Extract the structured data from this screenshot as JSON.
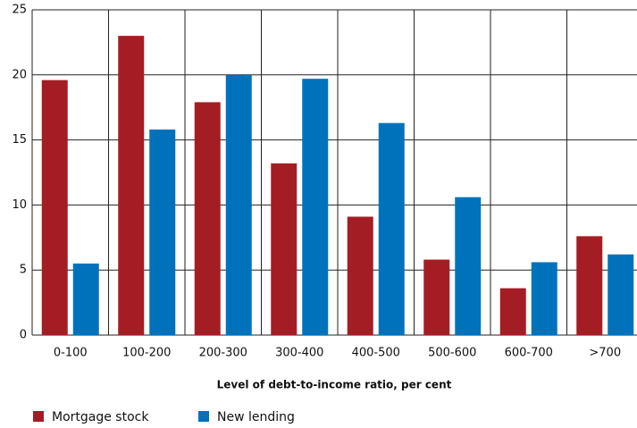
{
  "chart_data": {
    "type": "bar",
    "x_label": "Level of debt-to-income ratio, per cent",
    "categories": [
      "0-100",
      "100-200",
      "200-300",
      "300-400",
      "400-500",
      "500-600",
      "600-700",
      ">700"
    ],
    "series": [
      {
        "name": "Mortgage stock",
        "color": "#a51d24",
        "values": [
          19.6,
          23.0,
          17.9,
          13.2,
          9.1,
          5.8,
          3.6,
          7.6
        ]
      },
      {
        "name": "New lending",
        "color": "#0072bc",
        "values": [
          5.5,
          15.8,
          20.0,
          19.7,
          16.3,
          10.6,
          5.6,
          6.2
        ]
      }
    ],
    "ylim": [
      0,
      25
    ],
    "yticks": [
      0,
      5,
      10,
      15,
      20,
      25
    ],
    "grid": true
  }
}
